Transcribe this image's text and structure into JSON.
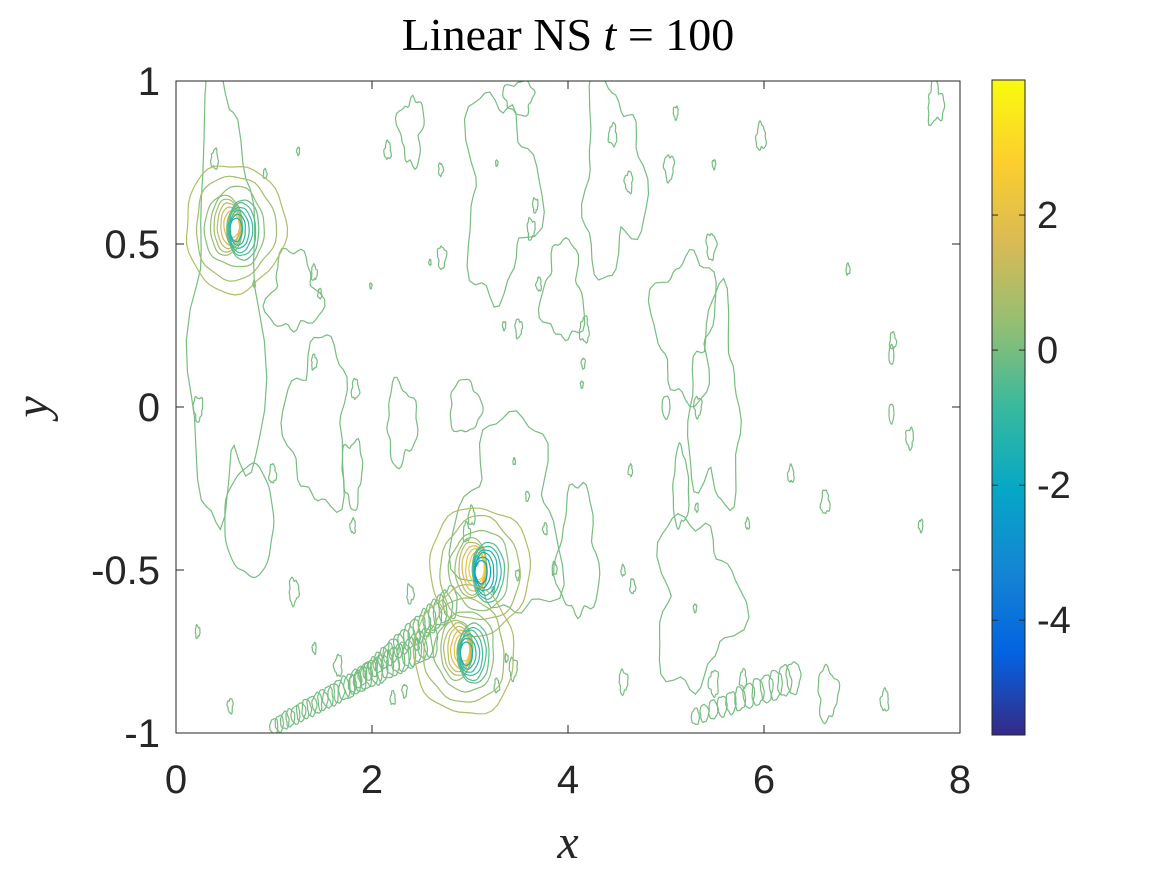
{
  "chart_data": {
    "type": "contour",
    "title": "Linear NS t = 100",
    "title_parts": {
      "prefix": "Linear NS ",
      "variable": "t",
      "suffix": " = 100"
    },
    "xlabel": "x",
    "ylabel": "y",
    "xlim": [
      0,
      8
    ],
    "ylim": [
      -1,
      1
    ],
    "x_ticks": [
      0,
      2,
      4,
      6,
      8
    ],
    "x_tick_labels": [
      "0",
      "2",
      "4",
      "6",
      "8"
    ],
    "y_ticks": [
      -1,
      -0.5,
      0,
      0.5,
      1
    ],
    "y_tick_labels": [
      "-1",
      "-0.5",
      "0",
      "0.5",
      "1"
    ],
    "colorbar": {
      "range": [
        -5.7,
        4.0
      ],
      "ticks": [
        -4,
        -2,
        0,
        2
      ],
      "tick_labels": [
        "-4",
        "-2",
        "0",
        "2"
      ],
      "colormap": "parula"
    },
    "vortex_features": [
      {
        "x": 0.6,
        "y": 0.55,
        "min": -1.5,
        "max": 2.0
      },
      {
        "x": 3.1,
        "y": -0.5,
        "min": -2.5,
        "max": 3.0
      },
      {
        "x": 2.95,
        "y": -0.75,
        "min": -1.5,
        "max": 2.5
      }
    ],
    "background_contour_level": 0,
    "grid": false,
    "legend": "none"
  }
}
